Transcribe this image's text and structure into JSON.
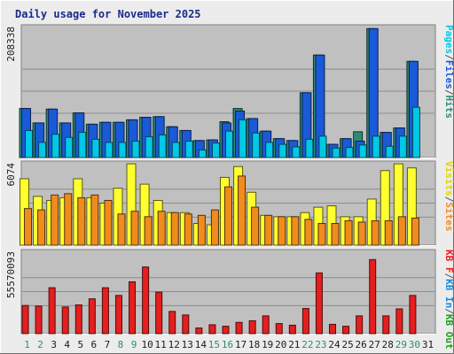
{
  "chart_data": [
    {
      "type": "bar",
      "title": "Daily usage for November 2025",
      "ymax_label": "208338",
      "ylim": [
        0,
        208338
      ],
      "axis_label_parts": [
        {
          "text": "Pages",
          "color": "#00c8e6"
        },
        {
          "text": "/",
          "color": "#555555"
        },
        {
          "text": "Files",
          "color": "#1a5ad8"
        },
        {
          "text": "/",
          "color": "#555555"
        },
        {
          "text": "Hits",
          "color": "#2f8a78"
        }
      ],
      "categories": [
        "1",
        "2",
        "3",
        "4",
        "5",
        "6",
        "7",
        "8",
        "9",
        "10",
        "11",
        "12",
        "13",
        "14",
        "15",
        "16",
        "17",
        "18",
        "19",
        "20",
        "21",
        "22",
        "23",
        "24",
        "25",
        "26",
        "27",
        "28",
        "29",
        "30",
        "31"
      ],
      "series": [
        {
          "name": "Hits",
          "color": "#2f8a78",
          "values": [
            78000,
            55000,
            77000,
            55000,
            71000,
            53000,
            56000,
            56000,
            60000,
            64000,
            65000,
            49000,
            43000,
            27000,
            28000,
            57000,
            78000,
            62000,
            42000,
            30000,
            27000,
            103000,
            163000,
            21000,
            30000,
            41000,
            205000,
            40000,
            47000,
            153000,
            0
          ]
        },
        {
          "name": "Files",
          "color": "#1a5ad8",
          "values": [
            78000,
            55000,
            77000,
            55000,
            71000,
            53000,
            56000,
            56000,
            60000,
            64000,
            65000,
            49000,
            43000,
            27000,
            28000,
            55000,
            74000,
            62000,
            42000,
            30000,
            27000,
            103000,
            163000,
            21000,
            30000,
            26000,
            205000,
            40000,
            47000,
            153000,
            0
          ]
        },
        {
          "name": "Pages",
          "color": "#00c8e6",
          "values": [
            43000,
            24000,
            37000,
            32000,
            40000,
            29000,
            24000,
            24000,
            26000,
            33000,
            36000,
            24000,
            26000,
            12000,
            23000,
            42000,
            60000,
            39000,
            24000,
            21000,
            17000,
            29000,
            34000,
            15000,
            16000,
            20000,
            34000,
            18000,
            34000,
            80000,
            0
          ]
        }
      ]
    },
    {
      "type": "bar",
      "ymax_label": "6074",
      "ylim": [
        0,
        6074
      ],
      "axis_label_parts": [
        {
          "text": "Visits",
          "color": "#e6d200"
        },
        {
          "text": "/",
          "color": "#555555"
        },
        {
          "text": "Sites",
          "color": "#f08c1e"
        }
      ],
      "categories": [
        "1",
        "2",
        "3",
        "4",
        "5",
        "6",
        "7",
        "8",
        "9",
        "10",
        "11",
        "12",
        "13",
        "14",
        "15",
        "16",
        "17",
        "18",
        "19",
        "20",
        "21",
        "22",
        "23",
        "24",
        "25",
        "26",
        "27",
        "28",
        "29",
        "30",
        "31"
      ],
      "series": [
        {
          "name": "Visits",
          "color": "#ffff30",
          "values": [
            4900,
            3600,
            3300,
            3500,
            4900,
            3500,
            3100,
            4200,
            6000,
            4500,
            3300,
            2400,
            2400,
            1600,
            1500,
            5000,
            5800,
            3900,
            2200,
            2100,
            2100,
            2400,
            2800,
            2900,
            2100,
            2100,
            3400,
            5500,
            6000,
            5700,
            0
          ]
        },
        {
          "name": "Sites",
          "color": "#f08c1e",
          "values": [
            2700,
            2600,
            3700,
            3800,
            3500,
            3700,
            3300,
            2300,
            2500,
            2100,
            2500,
            2400,
            2300,
            2200,
            2600,
            4300,
            5100,
            2800,
            2200,
            2100,
            2100,
            1900,
            1600,
            1600,
            1800,
            1700,
            1800,
            1800,
            2100,
            2000,
            0
          ]
        }
      ]
    },
    {
      "type": "bar",
      "ymax_label": "55570093",
      "ylim": [
        0,
        55570093
      ],
      "axis_label_parts": [
        {
          "text": "KB F",
          "color": "#e61e1e"
        },
        {
          "text": "/",
          "color": "#555555"
        },
        {
          "text": "KB In",
          "color": "#1a8adc"
        },
        {
          "text": "/",
          "color": "#555555"
        },
        {
          "text": "KB Out",
          "color": "#1ea01e"
        }
      ],
      "categories": [
        "1",
        "2",
        "3",
        "4",
        "5",
        "6",
        "7",
        "8",
        "9",
        "10",
        "11",
        "12",
        "13",
        "14",
        "15",
        "16",
        "17",
        "18",
        "19",
        "20",
        "21",
        "22",
        "23",
        "24",
        "25",
        "26",
        "27",
        "28",
        "29",
        "30",
        "31"
      ],
      "series": [
        {
          "name": "KB F",
          "color": "#e61e1e",
          "values": [
            19000000,
            18600000,
            31000000,
            18000000,
            19400000,
            23500000,
            31000000,
            25800000,
            35000000,
            45000000,
            28000000,
            15000000,
            12600000,
            3800000,
            6000000,
            5000000,
            7600000,
            8700000,
            12000000,
            6800000,
            5700000,
            17000000,
            41000000,
            6300000,
            5000000,
            12000000,
            50000000,
            12000000,
            16700000,
            25800000,
            0
          ]
        }
      ]
    }
  ],
  "x_tick_colors": [
    "#2f8a78",
    "#2f8a78",
    "#1a1a1a",
    "#1a1a1a",
    "#1a1a1a",
    "#1a1a1a",
    "#1a1a1a",
    "#2f8a78",
    "#2f8a78",
    "#1a1a1a",
    "#1a1a1a",
    "#1a1a1a",
    "#1a1a1a",
    "#1a1a1a",
    "#2f8a78",
    "#2f8a78",
    "#1a1a1a",
    "#1a1a1a",
    "#1a1a1a",
    "#1a1a1a",
    "#1a1a1a",
    "#2f8a78",
    "#2f8a78",
    "#1a1a1a",
    "#1a1a1a",
    "#1a1a1a",
    "#1a1a1a",
    "#1a1a1a",
    "#2f8a78",
    "#2f8a78",
    "#1a1a1a"
  ]
}
